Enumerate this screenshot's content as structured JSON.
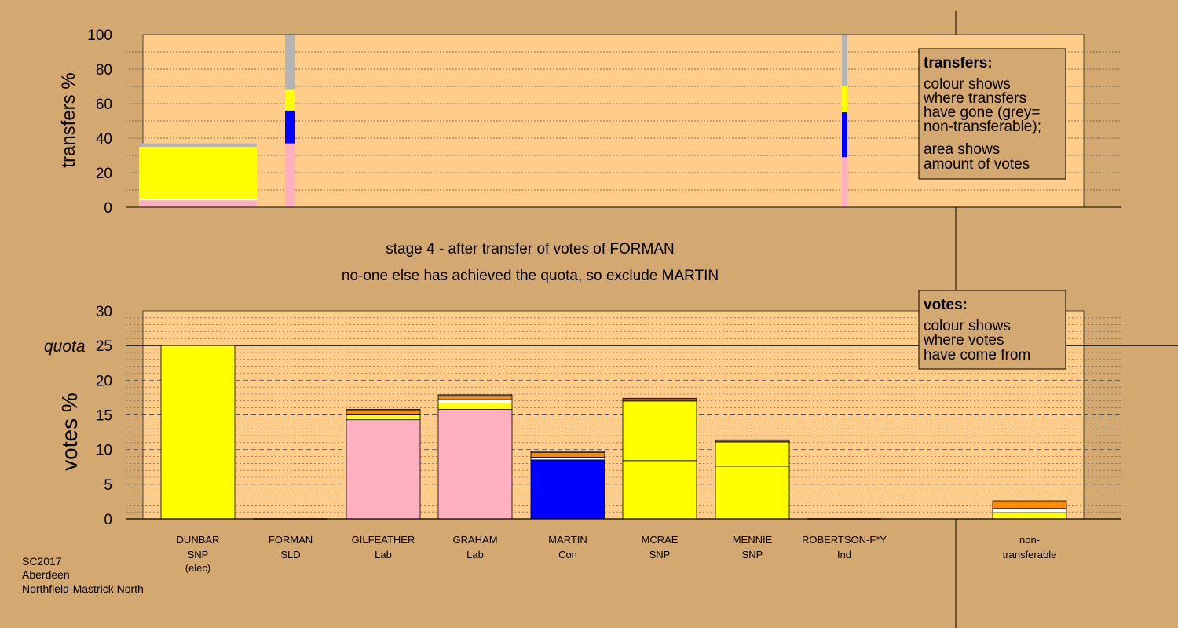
{
  "title": "stage 4 - after transfer of votes of FORMAN",
  "subtitle": "no-one else has achieved the quota, so exclude MARTIN",
  "footer": [
    "SC2017",
    "Aberdeen",
    "Northfield-Mastrick North"
  ],
  "quota_label": "quota",
  "colors": {
    "background": "#d4a871",
    "plot_bg": "#ffcc8a",
    "pink": "#ffb0c0",
    "yellow": "#ffff00",
    "blue": "#0000ff",
    "orange": "#ff8c00",
    "white": "#ffffff",
    "grey": "#b4b4b4",
    "brown": "#8b5a2b",
    "line": "#000000"
  },
  "transfers_legend": {
    "heading": "transfers:",
    "lines": [
      "colour shows",
      "where transfers",
      "have gone (grey=",
      "non-transferable);"
    ],
    "lines2": [
      "area shows",
      "amount of votes"
    ]
  },
  "votes_legend": {
    "heading": "votes:",
    "lines": [
      "colour shows",
      "where votes",
      "have come from"
    ]
  },
  "chart_data": [
    {
      "type": "bar",
      "id": "transfers",
      "ylabel": "transfers %",
      "ylim": [
        0,
        100
      ],
      "yticks": [
        0,
        20,
        40,
        60,
        80,
        100
      ],
      "grid": true,
      "transfer_bars": [
        {
          "source": "DUNBAR",
          "amount": "wide",
          "segments": [
            {
              "color": "pink",
              "from": 0,
              "to": 4
            },
            {
              "color": "white",
              "from": 4,
              "to": 5
            },
            {
              "color": "yellow",
              "from": 5,
              "to": 35
            },
            {
              "color": "grey",
              "from": 35,
              "to": 37
            }
          ]
        },
        {
          "source": "FORMAN",
          "amount": "narrow",
          "segments": [
            {
              "color": "pink",
              "from": 0,
              "to": 37
            },
            {
              "color": "blue",
              "from": 37,
              "to": 56
            },
            {
              "color": "yellow",
              "from": 56,
              "to": 68
            },
            {
              "color": "grey",
              "from": 68,
              "to": 100
            }
          ]
        },
        {
          "source": "ROBERTSON-F*Y",
          "amount": "narrow",
          "segments": [
            {
              "color": "pink",
              "from": 0,
              "to": 29
            },
            {
              "color": "blue",
              "from": 29,
              "to": 55
            },
            {
              "color": "yellow",
              "from": 55,
              "to": 70
            },
            {
              "color": "grey",
              "from": 70,
              "to": 100
            }
          ]
        }
      ]
    },
    {
      "type": "bar",
      "id": "votes",
      "ylabel": "votes %",
      "ylim": [
        0,
        30
      ],
      "yticks": [
        0,
        5,
        10,
        15,
        20,
        25,
        30
      ],
      "quota": 25,
      "grid": true,
      "categories": [
        {
          "name": "DUNBAR",
          "party": "SNP",
          "note": "(elec)"
        },
        {
          "name": "FORMAN",
          "party": "SLD",
          "note": ""
        },
        {
          "name": "GILFEATHER",
          "party": "Lab",
          "note": ""
        },
        {
          "name": "GRAHAM",
          "party": "Lab",
          "note": ""
        },
        {
          "name": "MARTIN",
          "party": "Con",
          "note": ""
        },
        {
          "name": "MCRAE",
          "party": "SNP",
          "note": ""
        },
        {
          "name": "MENNIE",
          "party": "SNP",
          "note": ""
        },
        {
          "name": "ROBERTSON-F*Y",
          "party": "Ind",
          "note": ""
        },
        {
          "name": "non-",
          "party": "transferable",
          "note": ""
        }
      ],
      "stacks": [
        [
          {
            "color": "yellow",
            "value": 25.0
          }
        ],
        [],
        [
          {
            "color": "pink",
            "value": 14.3
          },
          {
            "color": "yellow",
            "value": 0.7
          },
          {
            "color": "orange",
            "value": 0.6
          },
          {
            "color": "brown",
            "value": 0.2
          }
        ],
        [
          {
            "color": "pink",
            "value": 15.8
          },
          {
            "color": "yellow",
            "value": 0.9
          },
          {
            "color": "white",
            "value": 0.5
          },
          {
            "color": "orange",
            "value": 0.5
          },
          {
            "color": "brown",
            "value": 0.2
          }
        ],
        [
          {
            "color": "blue",
            "value": 8.5
          },
          {
            "color": "white",
            "value": 0.4
          },
          {
            "color": "orange",
            "value": 0.7
          },
          {
            "color": "brown",
            "value": 0.2
          }
        ],
        [
          {
            "color": "yellow",
            "value": 8.4
          },
          {
            "color": "yellow",
            "value": 8.6
          },
          {
            "color": "brown",
            "value": 0.4
          }
        ],
        [
          {
            "color": "yellow",
            "value": 7.6
          },
          {
            "color": "yellow",
            "value": 3.5
          },
          {
            "color": "brown",
            "value": 0.3
          }
        ],
        [],
        [
          {
            "color": "yellow",
            "value": 0.9
          },
          {
            "color": "white",
            "value": 0.6
          },
          {
            "color": "orange",
            "value": 1.1
          }
        ]
      ]
    }
  ]
}
